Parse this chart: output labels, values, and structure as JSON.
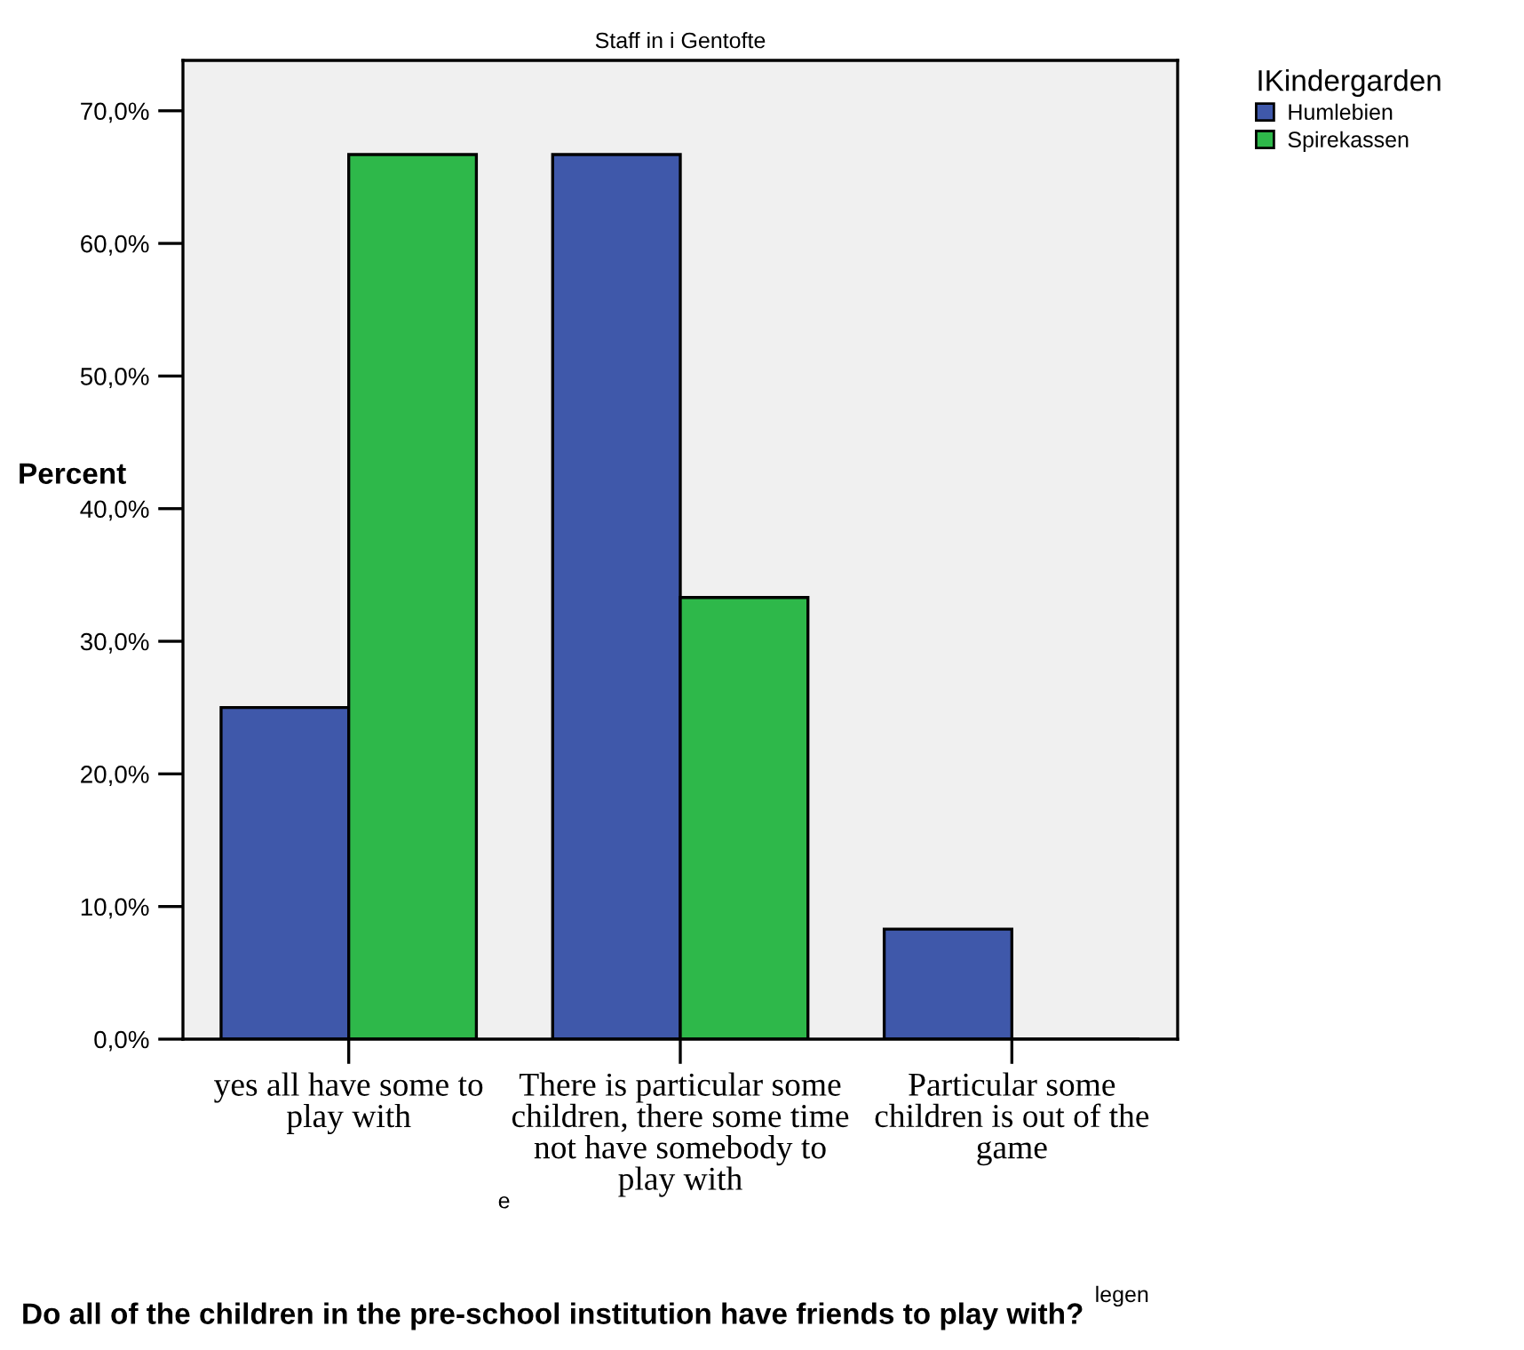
{
  "chart_data": {
    "type": "bar",
    "title": "Staff in i Gentofte",
    "categories": [
      "yes all have some to\nplay with",
      "There is particular some\nchildren, there some time\nnot have somebody to\nplay with",
      "Particular some\nchildren is out of the\ngame"
    ],
    "series": [
      {
        "name": "Humlebien",
        "color": "#3f58aa",
        "values": [
          25.0,
          66.7,
          8.3
        ]
      },
      {
        "name": "Spirekassen",
        "color": "#2eb84a",
        "values": [
          66.7,
          33.3,
          0.0
        ]
      }
    ],
    "legend_title": "IKindergarden",
    "legend": "top right",
    "xlabel": "Do all of the children in the pre-school institution have friends to play with?",
    "ylabel": "Percent",
    "ylim": [
      0,
      73.8
    ],
    "yticks": [
      {
        "value": 0,
        "label": "0,0%"
      },
      {
        "value": 10,
        "label": "10,0%"
      },
      {
        "value": 20,
        "label": "20,0%"
      },
      {
        "value": 30,
        "label": "30,0%"
      },
      {
        "value": 40,
        "label": "40,0%"
      },
      {
        "value": 50,
        "label": "50,0%"
      },
      {
        "value": 60,
        "label": "60,0%"
      },
      {
        "value": 70,
        "label": "70,0%"
      }
    ],
    "annotations": [
      "e",
      "legen"
    ],
    "grid": false
  }
}
